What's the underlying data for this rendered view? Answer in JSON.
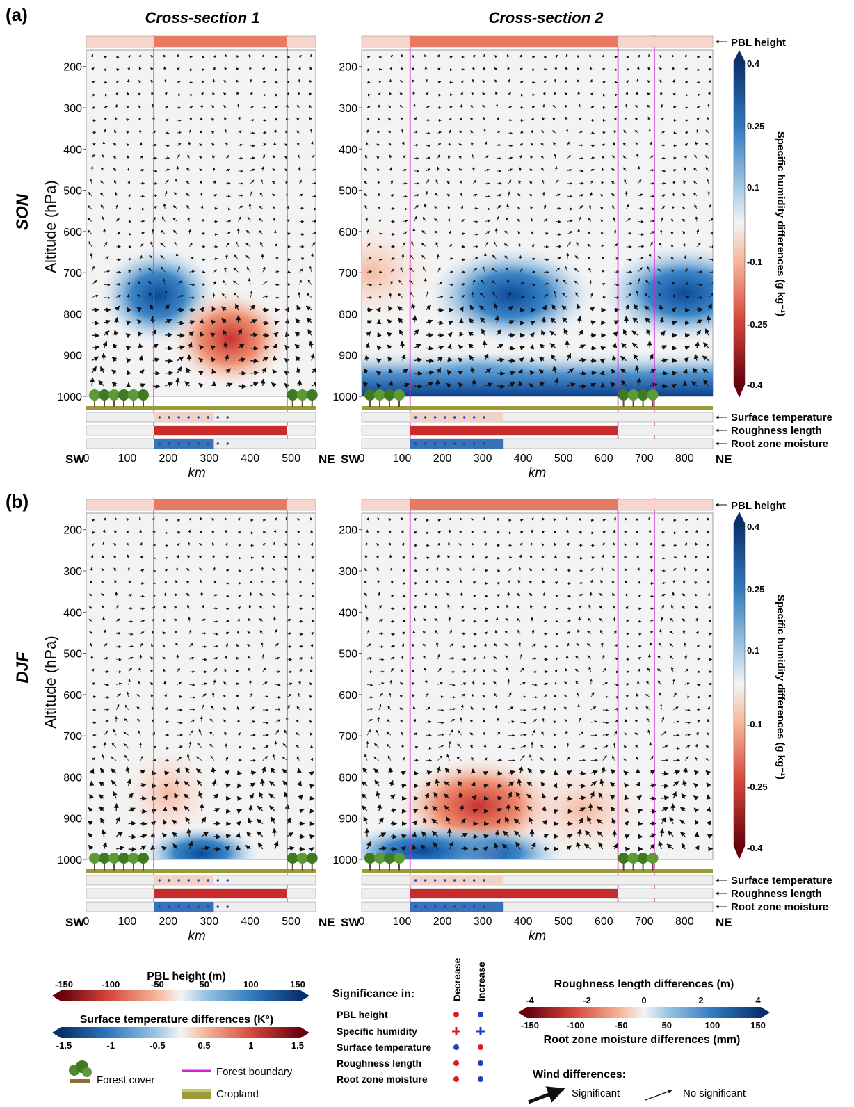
{
  "panel_letters": [
    "(a)",
    "(b)"
  ],
  "section_titles": [
    "Cross-section 1",
    "Cross-section 2"
  ],
  "seasons": [
    "SON",
    "DJF"
  ],
  "y_axis_label": "Altitude (hPa)",
  "y_ticks": [
    "200",
    "300",
    "400",
    "500",
    "600",
    "700",
    "800",
    "900",
    "1000"
  ],
  "x_axis_label": "km",
  "direction_labels": {
    "left": "SW",
    "right": "NE"
  },
  "x_ticks_cs1": [
    "0",
    "100",
    "200",
    "300",
    "400",
    "500"
  ],
  "x_ticks_cs2": [
    "0",
    "100",
    "200",
    "300",
    "400",
    "500",
    "600",
    "700",
    "800"
  ],
  "strip_labels": {
    "pbl": "PBL height",
    "surface_temperature": "Surface temperature",
    "roughness": "Roughness length",
    "root_zone": "Root zone moisture"
  },
  "humidity_colorbar": {
    "title": "Specific humidity differences (g kg⁻¹)",
    "ticks": [
      "0.4",
      "0.25",
      "0.1",
      "-0.1",
      "-0.25",
      "-0.4"
    ]
  },
  "legend": {
    "pbl_title": "PBL height (m)",
    "pbl_ticks": [
      "-150",
      "-100",
      "-50",
      "50",
      "100",
      "150"
    ],
    "st_title": "Surface temperature differences (K°)",
    "st_ticks": [
      "-1.5",
      "-1",
      "-0.5",
      "0.5",
      "1",
      "1.5"
    ],
    "rl_title": "Roughness length differences (m)",
    "rl_ticks": [
      "-4",
      "-2",
      "0",
      "2",
      "4"
    ],
    "rz_ticks": [
      "-150",
      "-100",
      "-50",
      "50",
      "100",
      "150"
    ],
    "rz_title": "Root zone moisture differences (mm)",
    "significance_title": "Significance in:",
    "decrease": "Decrease",
    "increase": "Increase",
    "sig_rows": [
      "PBL height",
      "Specific humidity",
      "Surface temperature",
      "Roughness length",
      "Root zone moisture"
    ],
    "forest_cover": "Forest cover",
    "forest_boundary": "Forest boundary",
    "cropland": "Cropland",
    "wind_title": "Wind differences:",
    "wind_significant": "Significant",
    "wind_not_significant": "No significant"
  },
  "colors": {
    "forest_boundary": "#d61fd0",
    "blue_dark": "#0b3d8c",
    "red_dark": "#8e0d1c",
    "significance_red": "#e31a1c",
    "significance_blue": "#1f3fbf"
  },
  "chart_data": [
    {
      "type": "heatmap",
      "season": "SON",
      "section": "Cross-section 1",
      "x_range_km": [
        0,
        560
      ],
      "y_range_hPa": [
        160,
        1000
      ],
      "forest_boundary_km": [
        165,
        490
      ],
      "humidity_features": [
        {
          "center_km": 175,
          "center_hPa": 755,
          "value": 0.3
        },
        {
          "center_km": 350,
          "center_hPa": 860,
          "value": -0.25
        }
      ]
    },
    {
      "type": "heatmap",
      "season": "SON",
      "section": "Cross-section 2",
      "x_range_km": [
        0,
        870
      ],
      "y_range_hPa": [
        160,
        1000
      ],
      "forest_boundary_km": [
        120,
        635,
        725
      ],
      "humidity_features": [
        {
          "center_km": 370,
          "center_hPa": 755,
          "value": 0.3
        },
        {
          "center_km": 300,
          "center_hPa": 960,
          "value": 0.3
        },
        {
          "center_km": 800,
          "center_hPa": 750,
          "value": 0.25
        },
        {
          "center_km": 20,
          "center_hPa": 700,
          "value": -0.15
        }
      ]
    },
    {
      "type": "heatmap",
      "season": "DJF",
      "section": "Cross-section 1",
      "x_range_km": [
        0,
        560
      ],
      "y_range_hPa": [
        160,
        1000
      ],
      "forest_boundary_km": [
        165,
        490
      ],
      "humidity_features": [
        {
          "center_km": 200,
          "center_hPa": 840,
          "value": -0.2
        },
        {
          "center_km": 280,
          "center_hPa": 985,
          "value": 0.3
        }
      ]
    },
    {
      "type": "heatmap",
      "season": "DJF",
      "section": "Cross-section 2",
      "x_range_km": [
        0,
        870
      ],
      "y_range_hPa": [
        160,
        1000
      ],
      "forest_boundary_km": [
        120,
        635,
        725
      ],
      "humidity_features": [
        {
          "center_km": 290,
          "center_hPa": 870,
          "value": -0.3
        },
        {
          "center_km": 550,
          "center_hPa": 880,
          "value": -0.2
        },
        {
          "center_km": 300,
          "center_hPa": 985,
          "value": 0.25
        },
        {
          "center_km": 150,
          "center_hPa": 980,
          "value": 0.3
        }
      ]
    }
  ]
}
